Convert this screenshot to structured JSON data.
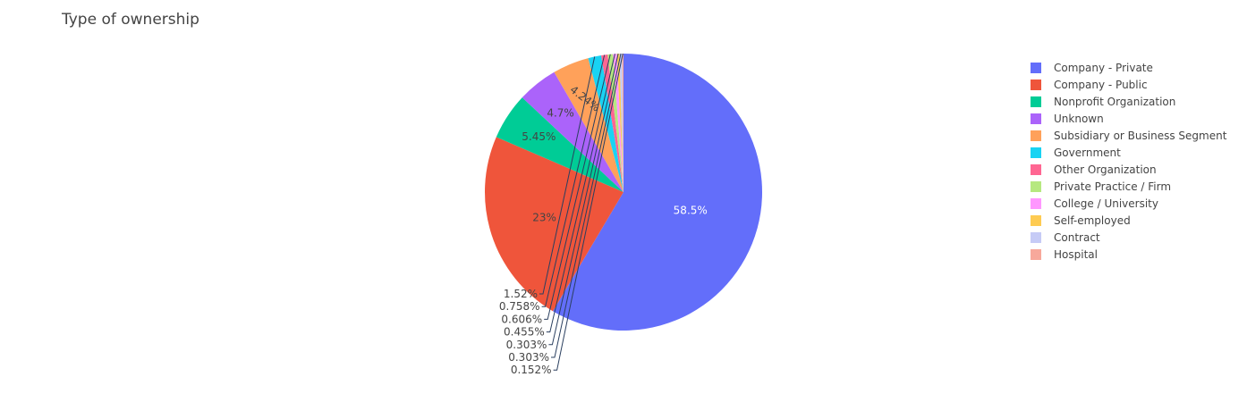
{
  "chart_data": {
    "type": "pie",
    "title": "Type of ownership",
    "legend_position": "right",
    "slices": [
      {
        "label": "Company - Private",
        "value": 58.5,
        "text": "58.5%",
        "color": "#636efa",
        "label_color": "#ffffff"
      },
      {
        "label": "Company - Public",
        "value": 23,
        "text": "23%",
        "color": "#ef553b",
        "label_color": "#444444"
      },
      {
        "label": "Nonprofit Organization",
        "value": 5.45,
        "text": "5.45%",
        "color": "#00cc96",
        "label_color": "#444444"
      },
      {
        "label": "Unknown",
        "value": 4.7,
        "text": "4.7%",
        "color": "#ab63fa",
        "label_color": "#444444"
      },
      {
        "label": "Subsidiary or Business Segment",
        "value": 4.24,
        "text": "4.24%",
        "color": "#ffa15a",
        "label_color": "#444444"
      },
      {
        "label": "Government",
        "value": 1.52,
        "text": "1.52%",
        "color": "#19d3f3",
        "label_color": "#444444"
      },
      {
        "label": "Other Organization",
        "value": 0.758,
        "text": "0.758%",
        "color": "#ff6692",
        "label_color": "#444444"
      },
      {
        "label": "Private Practice / Firm",
        "value": 0.606,
        "text": "0.606%",
        "color": "#b6e880",
        "label_color": "#444444"
      },
      {
        "label": "College / University",
        "value": 0.455,
        "text": "0.455%",
        "color": "#ff97ff",
        "label_color": "#444444"
      },
      {
        "label": "Self-employed",
        "value": 0.303,
        "text": "0.303%",
        "color": "#fecb52",
        "label_color": "#444444"
      },
      {
        "label": "Contract",
        "value": 0.303,
        "text": "0.303%",
        "color": "#c6cbf6",
        "label_color": "#444444"
      },
      {
        "label": "Hospital",
        "value": 0.152,
        "text": "0.152%",
        "color": "#f7a89b",
        "label_color": "#444444"
      }
    ]
  }
}
